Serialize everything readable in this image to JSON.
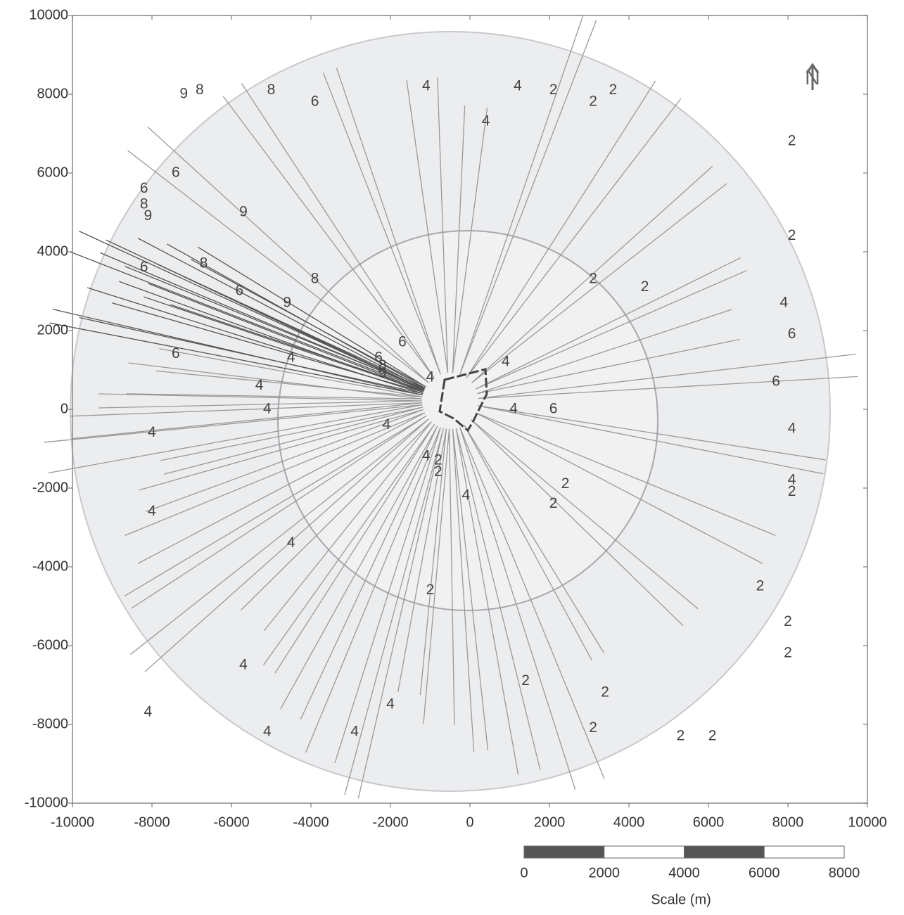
{
  "chart_data": {
    "type": "contour",
    "xlim": [
      -10000,
      10000
    ],
    "ylim": [
      -10000,
      10000
    ],
    "xticks": [
      -10000,
      -8000,
      -6000,
      -4000,
      -2000,
      0,
      2000,
      4000,
      6000,
      8000,
      10000
    ],
    "yticks": [
      -10000,
      -8000,
      -6000,
      -4000,
      -2000,
      0,
      2000,
      4000,
      6000,
      8000,
      10000
    ],
    "north_label": "N",
    "scale_bar": {
      "title": "Scale (m)",
      "ticks": [
        0,
        2000,
        4000,
        6000,
        8000
      ]
    },
    "contour_labels": [
      {
        "level": 9,
        "x": -7200,
        "y": 8000
      },
      {
        "level": 8,
        "x": -6800,
        "y": 8100
      },
      {
        "level": 8,
        "x": -5000,
        "y": 8100
      },
      {
        "level": 6,
        "x": -3900,
        "y": 7800
      },
      {
        "level": 6,
        "x": -7400,
        "y": 6000
      },
      {
        "level": 6,
        "x": -8200,
        "y": 5600
      },
      {
        "level": 8,
        "x": -8200,
        "y": 5200
      },
      {
        "level": 9,
        "x": -8100,
        "y": 4900
      },
      {
        "level": 9,
        "x": -5700,
        "y": 5000
      },
      {
        "level": 6,
        "x": -8200,
        "y": 3600
      },
      {
        "level": 8,
        "x": -6700,
        "y": 3700
      },
      {
        "level": 6,
        "x": -5800,
        "y": 3000
      },
      {
        "level": 8,
        "x": -3900,
        "y": 3300
      },
      {
        "level": 9,
        "x": -4600,
        "y": 2700
      },
      {
        "level": 6,
        "x": -1700,
        "y": 1700
      },
      {
        "level": 6,
        "x": -2300,
        "y": 1300
      },
      {
        "level": 8,
        "x": -2200,
        "y": 1100
      },
      {
        "level": 9,
        "x": -2200,
        "y": 900
      },
      {
        "level": 6,
        "x": -7400,
        "y": 1400
      },
      {
        "level": 4,
        "x": -4500,
        "y": 1300
      },
      {
        "level": 4,
        "x": -5300,
        "y": 600
      },
      {
        "level": 4,
        "x": -5100,
        "y": 0
      },
      {
        "level": 4,
        "x": -8000,
        "y": -600
      },
      {
        "level": 4,
        "x": -2100,
        "y": -400
      },
      {
        "level": 4,
        "x": -1000,
        "y": 800
      },
      {
        "level": 4,
        "x": 900,
        "y": 1200
      },
      {
        "level": 4,
        "x": 1100,
        "y": 0
      },
      {
        "level": 6,
        "x": 2100,
        "y": 0
      },
      {
        "level": 6,
        "x": 8100,
        "y": 1900
      },
      {
        "level": 6,
        "x": 7700,
        "y": 700
      },
      {
        "level": 4,
        "x": 8100,
        "y": -500
      },
      {
        "level": 4,
        "x": 7900,
        "y": 2700
      },
      {
        "level": 4,
        "x": 8100,
        "y": -1800
      },
      {
        "level": 2,
        "x": 8100,
        "y": -2100
      },
      {
        "level": 4,
        "x": -1100,
        "y": -1200
      },
      {
        "level": 2,
        "x": -800,
        "y": -1300
      },
      {
        "level": 2,
        "x": -800,
        "y": -1600
      },
      {
        "level": 4,
        "x": -100,
        "y": -2200
      },
      {
        "level": 4,
        "x": -8000,
        "y": -2600
      },
      {
        "level": 4,
        "x": -4500,
        "y": -3400
      },
      {
        "level": 4,
        "x": -5700,
        "y": -6500
      },
      {
        "level": 4,
        "x": -8100,
        "y": -7700
      },
      {
        "level": 4,
        "x": -5100,
        "y": -8200
      },
      {
        "level": 4,
        "x": -2900,
        "y": -8200
      },
      {
        "level": 4,
        "x": -2000,
        "y": -7500
      },
      {
        "level": 2,
        "x": -1000,
        "y": -4600
      },
      {
        "level": 2,
        "x": 1400,
        "y": -6900
      },
      {
        "level": 2,
        "x": 3400,
        "y": -7200
      },
      {
        "level": 2,
        "x": 3100,
        "y": -8100
      },
      {
        "level": 2,
        "x": 5300,
        "y": -8300
      },
      {
        "level": 2,
        "x": 6100,
        "y": -8300
      },
      {
        "level": 2,
        "x": 7300,
        "y": -4500
      },
      {
        "level": 2,
        "x": 8000,
        "y": -5400
      },
      {
        "level": 2,
        "x": 8000,
        "y": -6200
      },
      {
        "level": 2,
        "x": 2400,
        "y": -1900
      },
      {
        "level": 2,
        "x": 2100,
        "y": -2400
      },
      {
        "level": 2,
        "x": 3100,
        "y": 3300
      },
      {
        "level": 2,
        "x": 4400,
        "y": 3100
      },
      {
        "level": 2,
        "x": 8100,
        "y": 4400
      },
      {
        "level": 2,
        "x": 8100,
        "y": 6800
      },
      {
        "level": 4,
        "x": -1100,
        "y": 8200
      },
      {
        "level": 4,
        "x": 400,
        "y": 7300
      },
      {
        "level": 4,
        "x": 1200,
        "y": 8200
      },
      {
        "level": 2,
        "x": 2100,
        "y": 8100
      },
      {
        "level": 2,
        "x": 3100,
        "y": 7800
      },
      {
        "level": 2,
        "x": 3600,
        "y": 8100
      }
    ]
  }
}
